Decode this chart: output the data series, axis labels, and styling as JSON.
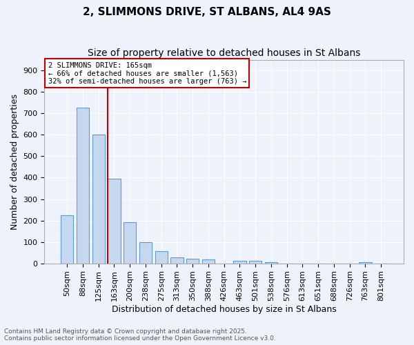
{
  "title": "2, SLIMMONS DRIVE, ST ALBANS, AL4 9AS",
  "subtitle": "Size of property relative to detached houses in St Albans",
  "xlabel": "Distribution of detached houses by size in St Albans",
  "ylabel": "Number of detached properties",
  "categories": [
    "50sqm",
    "88sqm",
    "125sqm",
    "163sqm",
    "200sqm",
    "238sqm",
    "275sqm",
    "313sqm",
    "350sqm",
    "388sqm",
    "426sqm",
    "463sqm",
    "501sqm",
    "538sqm",
    "576sqm",
    "613sqm",
    "651sqm",
    "688sqm",
    "726sqm",
    "763sqm",
    "801sqm"
  ],
  "values": [
    224,
    728,
    601,
    395,
    192,
    100,
    58,
    27,
    21,
    20,
    0,
    11,
    12,
    5,
    0,
    0,
    0,
    0,
    0,
    7,
    0
  ],
  "bar_color": "#c5d8f0",
  "bar_edge_color": "#5b9bd5",
  "vline_x_index": 3,
  "vline_color": "#c00000",
  "annotation_line1": "2 SLIMMONS DRIVE: 165sqm",
  "annotation_line2": "← 66% of detached houses are smaller (1,563)",
  "annotation_line3": "32% of semi-detached houses are larger (763) →",
  "annotation_box_color": "#c00000",
  "background_color": "#eef2fa",
  "grid_color": "#ffffff",
  "ylim": [
    0,
    950
  ],
  "yticks": [
    0,
    100,
    200,
    300,
    400,
    500,
    600,
    700,
    800,
    900
  ],
  "footer": "Contains HM Land Registry data © Crown copyright and database right 2025.\nContains public sector information licensed under the Open Government Licence v3.0.",
  "title_fontsize": 11,
  "subtitle_fontsize": 10,
  "axis_fontsize": 9,
  "tick_fontsize": 8
}
